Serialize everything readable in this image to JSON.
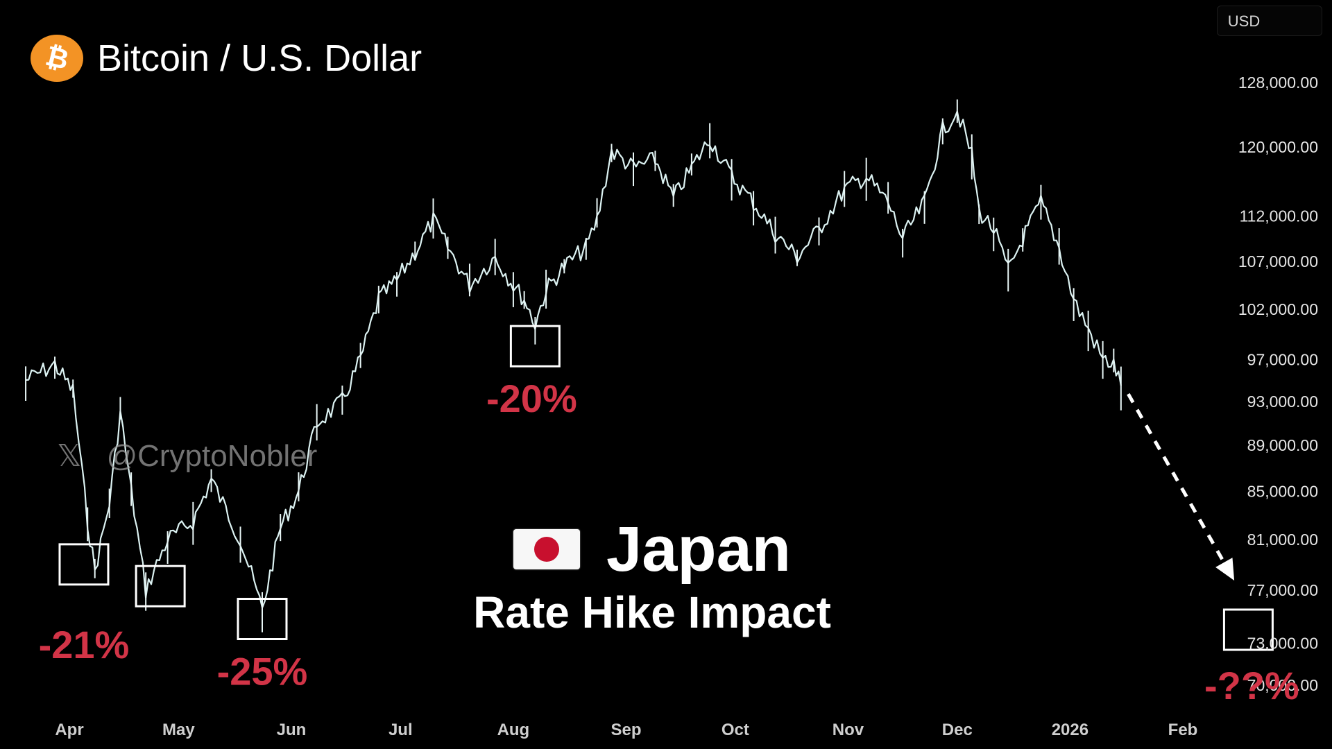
{
  "header": {
    "title": "Bitcoin / U.S. Dollar",
    "logo_icon": "bitcoin-icon",
    "logo_color": "#f39325"
  },
  "currency": "USD",
  "watermark": {
    "icon": "x-icon",
    "handle": "@CryptoNobler"
  },
  "headline": {
    "flag_icon": "japan-flag-icon",
    "title": "Japan",
    "subtitle": "Rate Hike Impact"
  },
  "chart_data": {
    "type": "line",
    "series": [
      {
        "line_color": "#ffffff",
        "points": [
          [
            "Mar 20",
            95000
          ],
          [
            "Mar 28",
            96500
          ],
          [
            "Apr 2",
            94000
          ],
          [
            "Apr 6",
            82500
          ],
          [
            "Apr 8",
            78500
          ],
          [
            "Apr 12",
            84000
          ],
          [
            "Apr 15",
            92000
          ],
          [
            "Apr 18",
            85000
          ],
          [
            "Apr 22",
            77000
          ],
          [
            "Apr 28",
            81000
          ],
          [
            "May 5",
            82500
          ],
          [
            "May 10",
            86000
          ],
          [
            "May 18",
            81000
          ],
          [
            "May 24",
            75500
          ],
          [
            "May 29",
            82000
          ],
          [
            "Jun 3",
            85000
          ],
          [
            "Jun 8",
            91000
          ],
          [
            "Jun 15",
            93000
          ],
          [
            "Jun 20",
            97000
          ],
          [
            "Jun 25",
            103000
          ],
          [
            "Jun 30",
            105000
          ],
          [
            "Jul 5",
            108000
          ],
          [
            "Jul 10",
            111500
          ],
          [
            "Jul 14",
            108500
          ],
          [
            "Jul 20",
            104500
          ],
          [
            "Jul 27",
            107500
          ],
          [
            "Aug 1",
            104500
          ],
          [
            "Aug 4",
            103000
          ],
          [
            "Aug 7",
            100500
          ],
          [
            "Aug 10",
            104000
          ],
          [
            "Aug 15",
            106500
          ],
          [
            "Aug 21",
            108500
          ],
          [
            "Aug 24",
            111500
          ],
          [
            "Aug 28",
            119500
          ],
          [
            "Sep 3",
            117500
          ],
          [
            "Sep 9",
            118500
          ],
          [
            "Sep 14",
            114000
          ],
          [
            "Sep 19",
            117500
          ],
          [
            "Sep 24",
            121000
          ],
          [
            "Sep 30",
            116500
          ],
          [
            "Oct 6",
            113500
          ],
          [
            "Oct 12",
            110000
          ],
          [
            "Oct 18",
            107500
          ],
          [
            "Oct 24",
            110500
          ],
          [
            "Oct 31",
            115000
          ],
          [
            "Nov 6",
            116500
          ],
          [
            "Nov 12",
            113500
          ],
          [
            "Nov 16",
            109500
          ],
          [
            "Nov 22",
            113500
          ],
          [
            "Nov 27",
            122000
          ],
          [
            "Dec 1",
            124500
          ],
          [
            "Dec 5",
            119000
          ],
          [
            "Dec 7",
            112500
          ],
          [
            "Dec 11",
            110500
          ],
          [
            "Dec 15",
            106000
          ],
          [
            "Dec 19",
            109500
          ],
          [
            "Dec 24",
            113500
          ],
          [
            "Dec 29",
            108500
          ],
          [
            "Jan 2",
            103000
          ],
          [
            "Jan 6",
            100000
          ],
          [
            "Jan 10",
            97000
          ],
          [
            "Jan 13",
            96500
          ],
          [
            "Jan 15",
            94500
          ]
        ]
      }
    ],
    "xlabel": "",
    "ylabel": "",
    "x_ticks": [
      "Apr",
      "May",
      "Jun",
      "Jul",
      "Aug",
      "Sep",
      "Oct",
      "Nov",
      "Dec",
      "2026",
      "Feb"
    ],
    "y_ticks": [
      "128,000.00",
      "120,000.00",
      "112,000.00",
      "107,000.00",
      "102,000.00",
      "97,000.00",
      "93,000.00",
      "89,000.00",
      "85,000.00",
      "81,000.00",
      "77,000.00",
      "73,000.00",
      "70,000.00"
    ],
    "y_scale": "log",
    "ylim": [
      68500,
      132000
    ],
    "grid": false,
    "annotations": [
      {
        "label": "-21%",
        "x": "Apr 5",
        "y": 79000,
        "color": "#d23447"
      },
      {
        "label": "-25%",
        "x": "May 24",
        "y": 74800,
        "color": "#d23447"
      },
      {
        "label": "-20%",
        "x": "Aug 7",
        "y": 98300,
        "color": "#d23447"
      },
      {
        "label": "-??%",
        "x": "Feb 19",
        "y": 74000,
        "color": "#d23447"
      }
    ],
    "extra_boxes": [
      {
        "x": "Apr 26",
        "y": 77300
      }
    ],
    "projection_arrow": {
      "from": [
        "Jan 17",
        93700
      ],
      "to": [
        "Feb 14",
        78300
      ],
      "style": "dashed",
      "color": "#ffffff"
    }
  }
}
